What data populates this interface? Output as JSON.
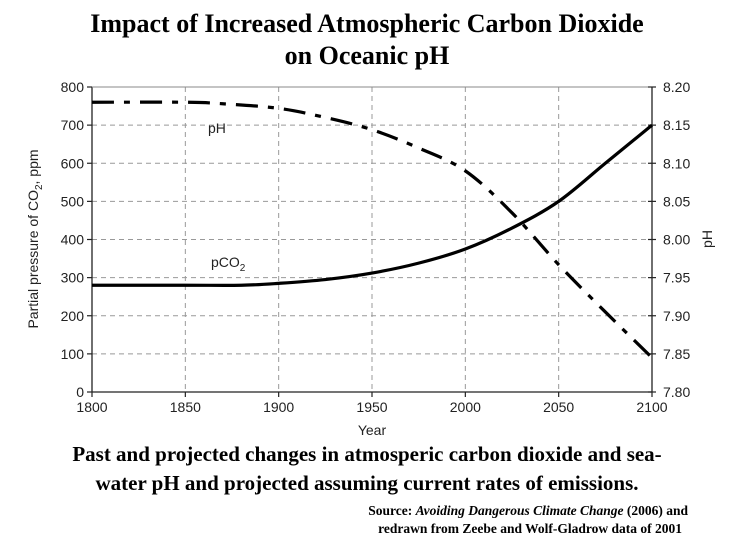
{
  "page": {
    "title_line1": "Impact of Increased Atmospheric Carbon Dioxide",
    "title_line2": "on Oceanic pH",
    "caption_line1": "Past and projected changes in atmosperic carbon dioxide and sea-",
    "caption_line2": "water pH and projected assuming current rates of emissions.",
    "source_prefix": "Source: ",
    "source_title": "Avoiding Dangerous Climate Change",
    "source_suffix": " (2006) and",
    "source_line2": "redrawn from Zeebe and Wolf-Gladrow data of 2001"
  },
  "chart_data": {
    "type": "line",
    "title": "Impact of Increased Atmospheric Carbon Dioxide on Oceanic pH",
    "xlabel": "Year",
    "ylabel": "Partial pressure of CO2, ppm",
    "y2label": "pH",
    "xlim": [
      1800,
      2100
    ],
    "ylim": [
      0,
      800
    ],
    "y2lim": [
      7.8,
      8.2
    ],
    "xticks": [
      "1800",
      "1850",
      "1900",
      "1950",
      "2000",
      "2050",
      "2100"
    ],
    "yticks": [
      "0",
      "100",
      "200",
      "300",
      "400",
      "500",
      "600",
      "700",
      "800"
    ],
    "y2ticks": [
      "7.80",
      "7.85",
      "7.90",
      "7.95",
      "8.00",
      "8.05",
      "8.10",
      "8.15",
      "8.20"
    ],
    "grid": true,
    "series": [
      {
        "name": "pCO2",
        "label": "pCO",
        "label_sub": "2",
        "axis": "left",
        "style": "solid",
        "x": [
          1800,
          1850,
          1880,
          1900,
          1925,
          1950,
          1975,
          2000,
          2025,
          2050,
          2075,
          2100
        ],
        "values": [
          280,
          280,
          280,
          285,
          295,
          312,
          338,
          375,
          430,
          500,
          600,
          700
        ]
      },
      {
        "name": "pH",
        "label": "pH",
        "axis": "right",
        "style": "dash-dot",
        "x": [
          1800,
          1850,
          1870,
          1900,
          1925,
          1950,
          1975,
          2000,
          2025,
          2050,
          2075,
          2100
        ],
        "values": [
          8.18,
          8.18,
          8.178,
          8.172,
          8.16,
          8.144,
          8.12,
          8.09,
          8.035,
          7.967,
          7.905,
          7.845
        ]
      }
    ]
  }
}
